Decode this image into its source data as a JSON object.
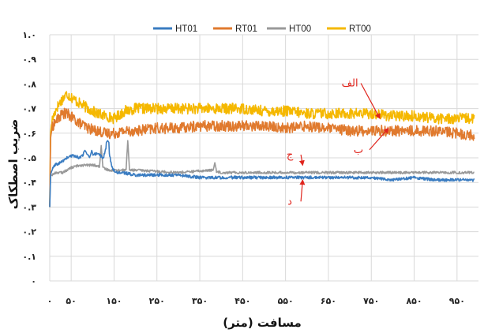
{
  "chart_data": {
    "type": "line",
    "xlabel": "مسافت (متر)",
    "ylabel": "ضریب اصطکاک",
    "xlim": [
      0,
      1000
    ],
    "ylim": [
      0,
      1.0
    ],
    "x_ticks": [
      0,
      50,
      150,
      250,
      350,
      450,
      550,
      650,
      750,
      850,
      950
    ],
    "x_tick_labels": [
      "۰",
      "۵۰",
      "۱۵۰",
      "۲۵۰",
      "۳۵۰",
      "۴۵۰",
      "۵۵۰",
      "۶۵۰",
      "۷۵۰",
      "۸۵۰",
      "۹۵۰"
    ],
    "y_ticks": [
      0,
      0.1,
      0.2,
      0.3,
      0.4,
      0.5,
      0.6,
      0.7,
      0.8,
      0.9,
      1.0
    ],
    "y_tick_labels": [
      "۰",
      "۰.۱",
      "۰.۲",
      "۰.۳",
      "۰.۴",
      "۰.۵",
      "۰.۶",
      "۰.۷",
      "۰.۸",
      "۰.۹",
      "۱.۰"
    ],
    "grid": true,
    "legend_position": "top",
    "series": [
      {
        "name": "HT01",
        "color": "#3a7cc1",
        "x": [
          0,
          2,
          5,
          12,
          25,
          40,
          55,
          70,
          82,
          95,
          110,
          125,
          135,
          145,
          155,
          170,
          200,
          250,
          300,
          350,
          400,
          450,
          500,
          550,
          600,
          650,
          700,
          750,
          800,
          850,
          900,
          950,
          990
        ],
        "y": [
          0.3,
          0.43,
          0.45,
          0.47,
          0.48,
          0.5,
          0.51,
          0.5,
          0.52,
          0.5,
          0.52,
          0.5,
          0.56,
          0.46,
          0.44,
          0.44,
          0.43,
          0.43,
          0.43,
          0.42,
          0.42,
          0.42,
          0.42,
          0.42,
          0.42,
          0.42,
          0.42,
          0.42,
          0.41,
          0.42,
          0.41,
          0.41,
          0.41
        ]
      },
      {
        "name": "RT01",
        "color": "#e07a2e",
        "x": [
          0,
          2,
          5,
          10,
          20,
          30,
          40,
          55,
          70,
          90,
          110,
          130,
          150,
          175,
          200,
          250,
          300,
          350,
          400,
          450,
          500,
          550,
          600,
          650,
          700,
          750,
          800,
          850,
          900,
          950,
          990
        ],
        "y": [
          0.3,
          0.58,
          0.62,
          0.64,
          0.66,
          0.68,
          0.68,
          0.66,
          0.64,
          0.62,
          0.61,
          0.6,
          0.6,
          0.61,
          0.61,
          0.62,
          0.62,
          0.63,
          0.63,
          0.63,
          0.63,
          0.62,
          0.63,
          0.62,
          0.61,
          0.61,
          0.61,
          0.61,
          0.61,
          0.6,
          0.59
        ]
      },
      {
        "name": "HT00",
        "color": "#999999",
        "x": [
          0,
          2,
          5,
          15,
          30,
          50,
          70,
          90,
          105,
          120,
          140,
          160,
          185,
          200,
          300,
          380,
          400,
          500,
          600,
          700,
          800,
          900,
          990
        ],
        "y": [
          0.3,
          0.43,
          0.43,
          0.44,
          0.44,
          0.46,
          0.47,
          0.47,
          0.47,
          0.46,
          0.45,
          0.45,
          0.45,
          0.45,
          0.44,
          0.45,
          0.44,
          0.44,
          0.44,
          0.44,
          0.44,
          0.44,
          0.44
        ]
      },
      {
        "name": "RT00",
        "color": "#f5b800",
        "x": [
          0,
          2,
          5,
          15,
          30,
          40,
          55,
          70,
          90,
          110,
          130,
          150,
          175,
          200,
          250,
          300,
          350,
          400,
          450,
          500,
          550,
          600,
          650,
          700,
          750,
          800,
          850,
          900,
          950,
          990
        ],
        "y": [
          0.3,
          0.6,
          0.65,
          0.7,
          0.74,
          0.76,
          0.74,
          0.72,
          0.7,
          0.68,
          0.67,
          0.66,
          0.69,
          0.7,
          0.7,
          0.7,
          0.7,
          0.7,
          0.7,
          0.69,
          0.69,
          0.68,
          0.68,
          0.68,
          0.68,
          0.67,
          0.67,
          0.66,
          0.66,
          0.66
        ]
      }
    ],
    "spikes": [
      {
        "series": "HT00",
        "x": 182,
        "y": 0.57
      },
      {
        "series": "HT00",
        "x": 120,
        "y": 0.55
      },
      {
        "series": "HT00",
        "x": 385,
        "y": 0.48
      },
      {
        "series": "HT01",
        "x": 82,
        "y": 0.53
      },
      {
        "series": "HT01",
        "x": 98,
        "y": 0.53
      },
      {
        "series": "HT01",
        "x": 135,
        "y": 0.57
      }
    ],
    "annotations": [
      {
        "label": "الف",
        "target_x": 770,
        "target_y": 0.66,
        "text_x": 700,
        "text_y": 0.79
      },
      {
        "label": "ب",
        "target_x": 790,
        "target_y": 0.62,
        "text_x": 720,
        "text_y": 0.52
      },
      {
        "label": "ج",
        "target_x": 590,
        "target_y": 0.47,
        "text_x": 560,
        "text_y": 0.5
      },
      {
        "label": "د",
        "target_x": 590,
        "target_y": 0.41,
        "text_x": 560,
        "text_y": 0.31
      }
    ]
  }
}
